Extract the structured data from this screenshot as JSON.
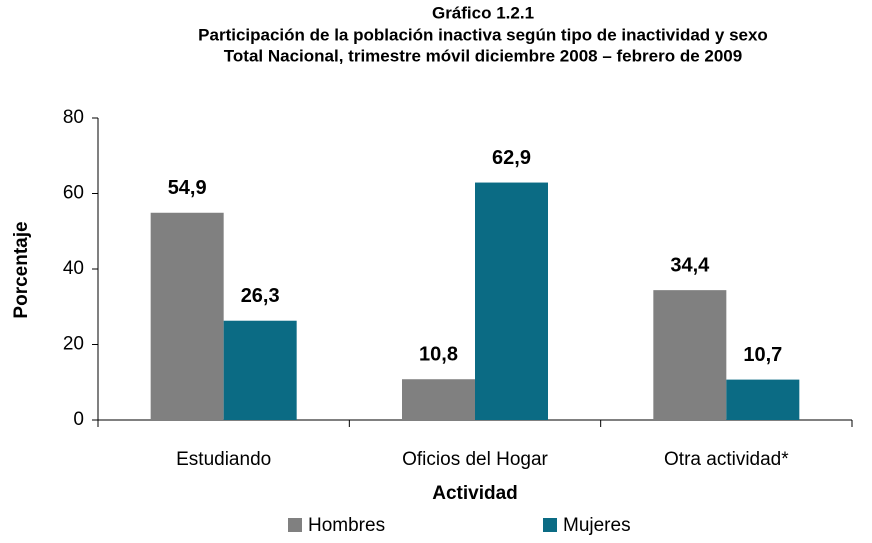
{
  "chart_data": {
    "type": "bar",
    "title": [
      "Gráfico 1.2.1",
      "Participación de la población inactiva según tipo de inactividad y sexo",
      "Total Nacional, trimestre móvil diciembre 2008 – febrero de 2009"
    ],
    "categories": [
      "Estudiando",
      "Oficios del Hogar",
      "Otra actividad*"
    ],
    "series": [
      {
        "name": "Hombres",
        "color": "#808080",
        "values": [
          54.9,
          10.8,
          34.4
        ],
        "value_labels": [
          "54,9",
          "10,8",
          "34,4"
        ]
      },
      {
        "name": "Mujeres",
        "color": "#0b6b84",
        "values": [
          26.3,
          62.9,
          10.7
        ],
        "value_labels": [
          "26,3",
          "62,9",
          "10,7"
        ]
      }
    ],
    "ylim": [
      0,
      80
    ],
    "yticks": [
      0,
      20,
      40,
      60,
      80
    ],
    "xlabel": "Actividad",
    "ylabel": "Porcentaje",
    "legend": "bottom",
    "grid": false
  }
}
